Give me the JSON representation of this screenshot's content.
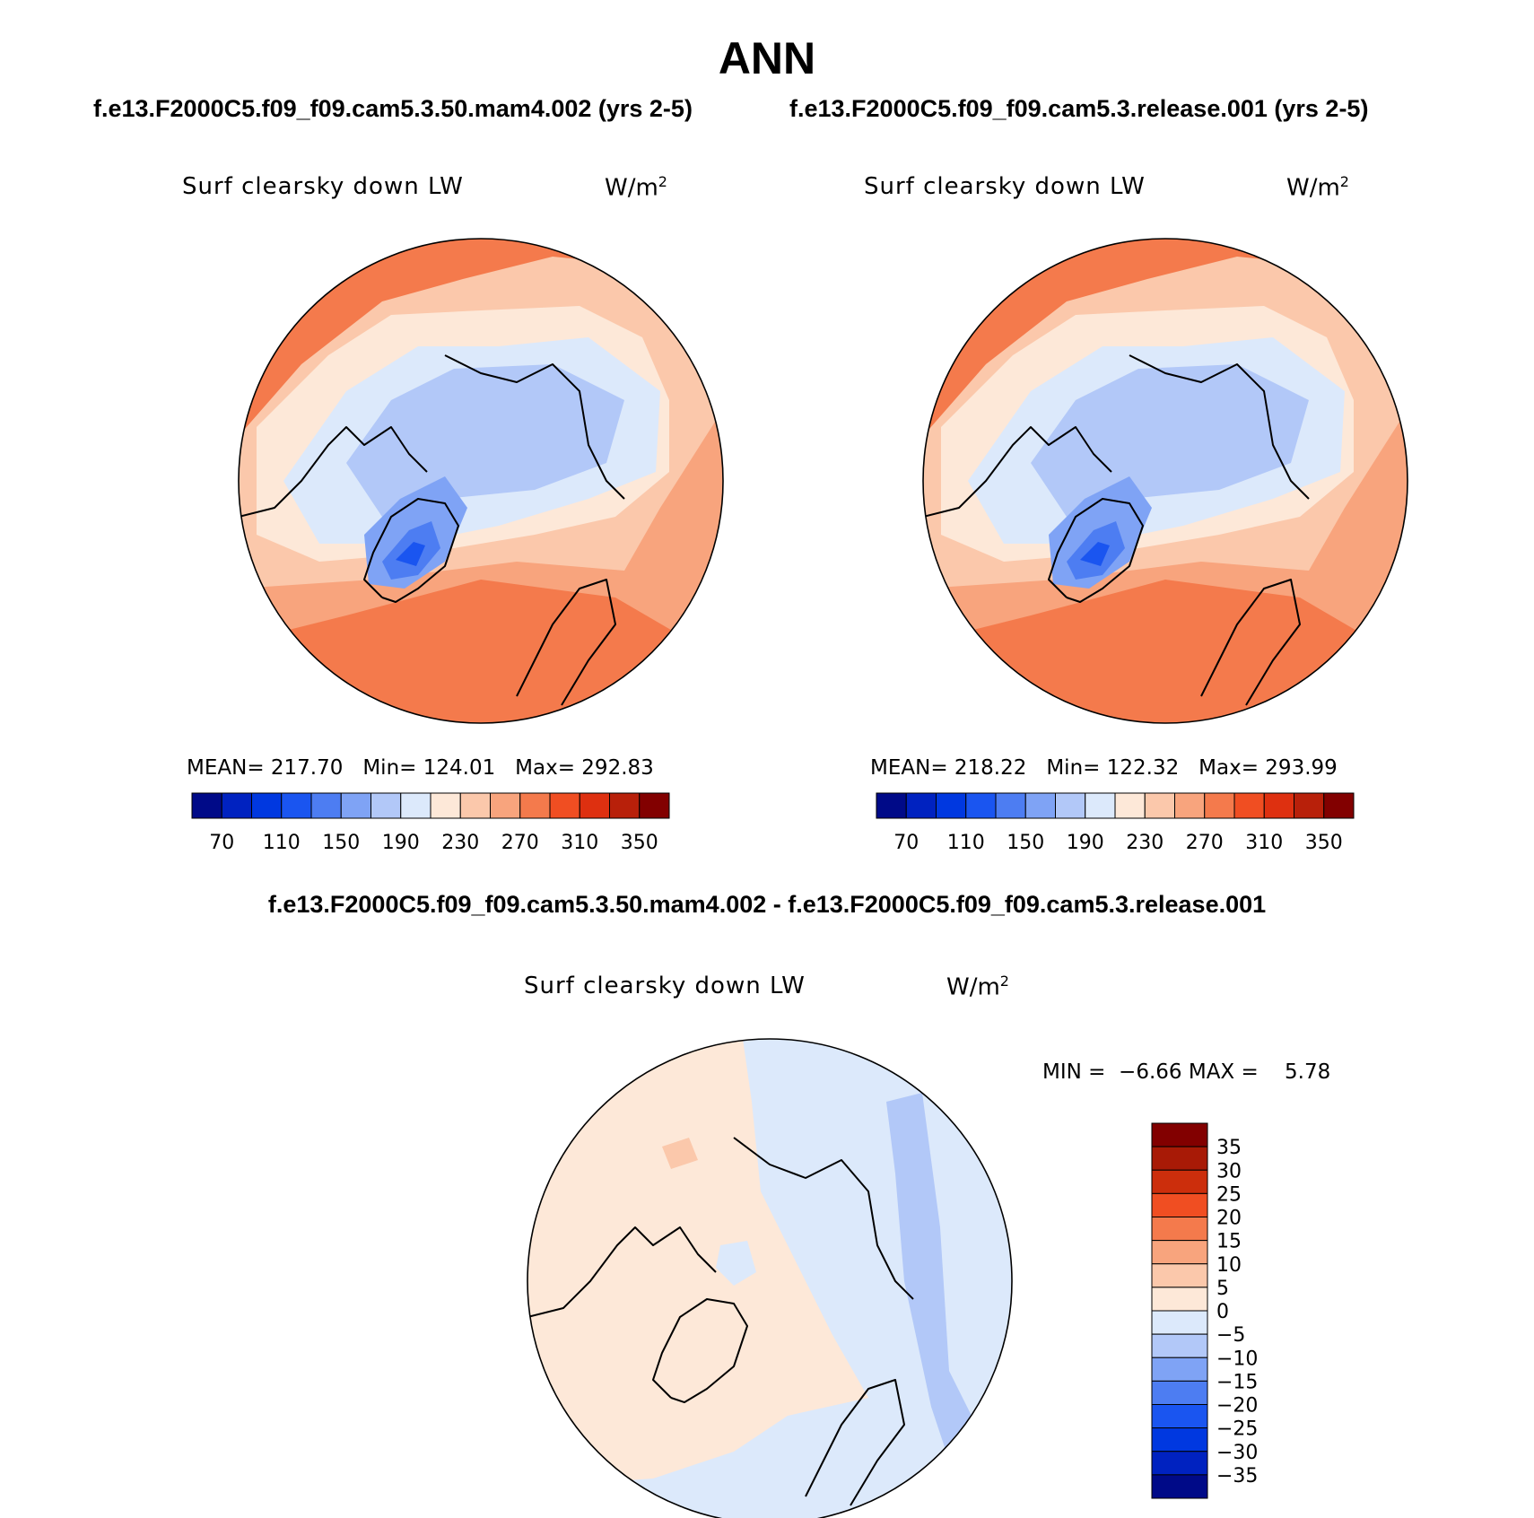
{
  "title": "ANN",
  "case_labels": {
    "left": "f.e13.F2000C5.f09_f09.cam5.3.50.mam4.002 (yrs 2-5)",
    "right": "f.e13.F2000C5.f09_f09.cam5.3.release.001 (yrs 2-5)"
  },
  "diff_title": "f.e13.F2000C5.f09_f09.cam5.3.50.mam4.002 - f.e13.F2000C5.f09_f09.cam5.3.release.001",
  "panels": [
    {
      "variable": "Surf clearsky down LW",
      "units_base": "W/m",
      "units_exp": "2",
      "stats": {
        "mean_label": "MEAN=",
        "mean": "217.70",
        "min_label": "Min=",
        "min": "124.01",
        "max_label": "Max=",
        "max": "292.83"
      }
    },
    {
      "variable": "Surf clearsky down LW",
      "units_base": "W/m",
      "units_exp": "2",
      "stats": {
        "mean_label": "MEAN=",
        "mean": "218.22",
        "min_label": "Min=",
        "min": "122.32",
        "max_label": "Max=",
        "max": "293.99"
      }
    },
    {
      "variable": "Surf clearsky down LW",
      "units_base": "W/m",
      "units_exp": "2",
      "stats": {
        "min_label": "MIN =",
        "min": "−6.66",
        "max_label": "MAX =",
        "max": "5.78"
      }
    }
  ],
  "colorbar_main": {
    "colors": [
      "#000a88",
      "#0022c0",
      "#0038e0",
      "#1a55f0",
      "#4d7df2",
      "#7fa3f5",
      "#b2c8f8",
      "#dce9fb",
      "#fde8d8",
      "#fbc8ab",
      "#f8a47d",
      "#f47a4c",
      "#f04e22",
      "#de3010",
      "#b8200a",
      "#820000"
    ],
    "tick_labels": [
      "70",
      "110",
      "150",
      "190",
      "230",
      "270",
      "310",
      "350"
    ]
  },
  "colorbar_diff": {
    "colors_top_to_bottom": [
      "#820000",
      "#a81a06",
      "#cc2e0c",
      "#f04e22",
      "#f47a4c",
      "#f8a47d",
      "#fbc8ab",
      "#fde8d8",
      "#dce9fb",
      "#b2c8f8",
      "#7fa3f5",
      "#4d7df2",
      "#1a55f0",
      "#0038e0",
      "#0022c0",
      "#000a88"
    ],
    "tick_labels": [
      "35",
      "30",
      "25",
      "20",
      "15",
      "10",
      "5",
      "0",
      "−5",
      "−10",
      "−15",
      "−20",
      "−25",
      "−30",
      "−35"
    ]
  },
  "palette": {
    "ocean_far": "#f47a4c",
    "warm2": "#f8a47d",
    "warm1": "#fbc8ab",
    "warm0": "#fde8d8",
    "cool0": "#dce9fb",
    "cool1": "#b2c8f8",
    "cool2": "#7fa3f5",
    "cool3": "#4d7df2",
    "cool4": "#1a55f0",
    "dark_red": "#de3010"
  }
}
